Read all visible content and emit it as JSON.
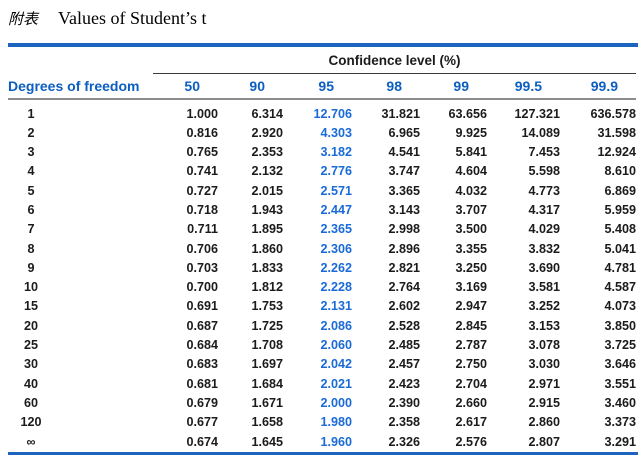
{
  "page": {
    "corner_tag": "附表",
    "title": "Values of Student’s t"
  },
  "table": {
    "group_header": "Confidence level (%)",
    "row_axis_label": "Degrees of freedom",
    "columns": [
      "50",
      "90",
      "95",
      "98",
      "99",
      "99.5",
      "99.9"
    ],
    "highlight_column": "95",
    "rows": [
      [
        "1",
        "1.000",
        "6.314",
        "12.706",
        "31.821",
        "63.656",
        "127.321",
        "636.578"
      ],
      [
        "2",
        "0.816",
        "2.920",
        "4.303",
        "6.965",
        "9.925",
        "14.089",
        "31.598"
      ],
      [
        "3",
        "0.765",
        "2.353",
        "3.182",
        "4.541",
        "5.841",
        "7.453",
        "12.924"
      ],
      [
        "4",
        "0.741",
        "2.132",
        "2.776",
        "3.747",
        "4.604",
        "5.598",
        "8.610"
      ],
      [
        "5",
        "0.727",
        "2.015",
        "2.571",
        "3.365",
        "4.032",
        "4.773",
        "6.869"
      ],
      [
        "6",
        "0.718",
        "1.943",
        "2.447",
        "3.143",
        "3.707",
        "4.317",
        "5.959"
      ],
      [
        "7",
        "0.711",
        "1.895",
        "2.365",
        "2.998",
        "3.500",
        "4.029",
        "5.408"
      ],
      [
        "8",
        "0.706",
        "1.860",
        "2.306",
        "2.896",
        "3.355",
        "3.832",
        "5.041"
      ],
      [
        "9",
        "0.703",
        "1.833",
        "2.262",
        "2.821",
        "3.250",
        "3.690",
        "4.781"
      ],
      [
        "10",
        "0.700",
        "1.812",
        "2.228",
        "2.764",
        "3.169",
        "3.581",
        "4.587"
      ],
      [
        "15",
        "0.691",
        "1.753",
        "2.131",
        "2.602",
        "2.947",
        "3.252",
        "4.073"
      ],
      [
        "20",
        "0.687",
        "1.725",
        "2.086",
        "2.528",
        "2.845",
        "3.153",
        "3.850"
      ],
      [
        "25",
        "0.684",
        "1.708",
        "2.060",
        "2.485",
        "2.787",
        "3.078",
        "3.725"
      ],
      [
        "30",
        "0.683",
        "1.697",
        "2.042",
        "2.457",
        "2.750",
        "3.030",
        "3.646"
      ],
      [
        "40",
        "0.681",
        "1.684",
        "2.021",
        "2.423",
        "2.704",
        "2.971",
        "3.551"
      ],
      [
        "60",
        "0.679",
        "1.671",
        "2.000",
        "2.390",
        "2.660",
        "2.915",
        "3.460"
      ],
      [
        "120",
        "0.677",
        "1.658",
        "1.980",
        "2.358",
        "2.617",
        "2.860",
        "3.373"
      ],
      [
        "∞",
        "0.674",
        "1.645",
        "1.960",
        "2.326",
        "2.576",
        "2.807",
        "3.291"
      ]
    ]
  },
  "colors": {
    "header_blue": "#0b5ec2",
    "highlight_blue": "#1a6ad8",
    "rule_blue": "#1c64bd",
    "rule_gray": "#8c8c8c",
    "text_black": "#1b1b1b"
  }
}
